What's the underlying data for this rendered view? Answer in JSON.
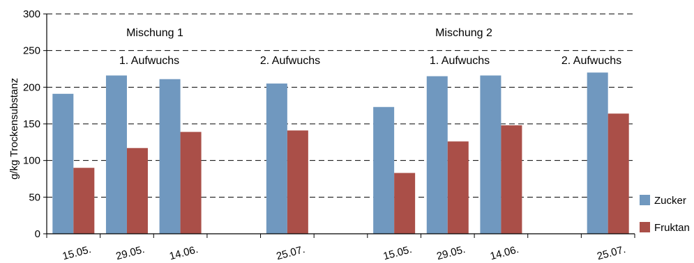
{
  "chart_data": {
    "type": "bar",
    "title": "",
    "ylabel": "g/kg Trockensubstanz",
    "xlabel": "",
    "ylim": [
      0,
      300
    ],
    "yticks": [
      0,
      50,
      100,
      150,
      200,
      250,
      300
    ],
    "grid": "horizontal dashed",
    "legend_position": "bottom-right",
    "categories": [
      "15.05.",
      "29.05.",
      "14.06.",
      "",
      "25.07.",
      "",
      "15.05.",
      "29.05.",
      "14.06.",
      "",
      "25.07."
    ],
    "series": [
      {
        "name": "Zucker",
        "color": "#7098bf",
        "values": [
          191,
          216,
          211,
          null,
          205,
          null,
          173,
          215,
          216,
          null,
          220
        ]
      },
      {
        "name": "Fruktan",
        "color": "#aa4f48",
        "values": [
          90,
          117,
          139,
          null,
          141,
          null,
          83,
          126,
          148,
          null,
          164
        ]
      }
    ],
    "annotations": [
      {
        "id": "mix1",
        "text": "Mischung 1"
      },
      {
        "id": "mix2",
        "text": "Mischung 2"
      },
      {
        "id": "a1",
        "text": "1. Aufwuchs"
      },
      {
        "id": "a2",
        "text": "2. Aufwuchs"
      },
      {
        "id": "a3",
        "text": "1. Aufwuchs"
      },
      {
        "id": "a4",
        "text": "2. Aufwuchs"
      }
    ]
  }
}
